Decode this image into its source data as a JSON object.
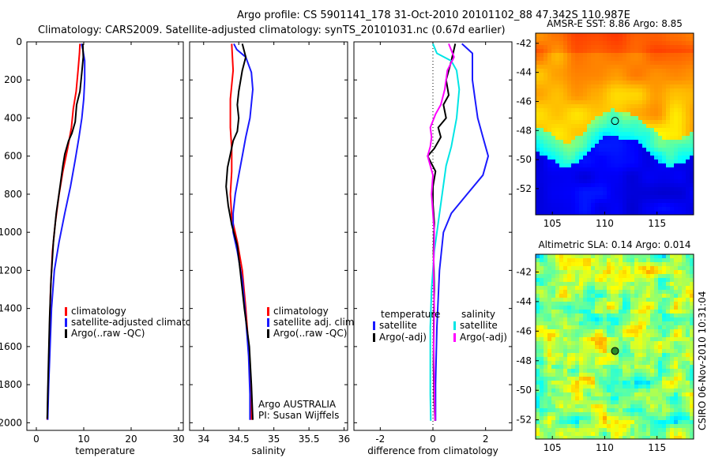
{
  "header": {
    "line1": "Argo profile: CS 5901141_178 31-Oct-2010 20101102_88 47.342S 110.987E",
    "line2": "Climatology: CARS2009. Satellite-adjusted climatology: synTS_20101031.nc (0.67d earlier)"
  },
  "side_label": "CSIRO 06-Nov-2010 10:31:04",
  "colors": {
    "red": "#ff0000",
    "blue": "#1a1aff",
    "black": "#000000",
    "cyan": "#00e5e5",
    "magenta": "#ff00ff"
  },
  "chart_data": [
    {
      "type": "line",
      "xlabel": "temperature",
      "xticks": [
        "0",
        "10",
        "20",
        "30"
      ],
      "xlim": [
        -2,
        31
      ],
      "ylim": [
        2040,
        0
      ],
      "yticks": [
        "0",
        "200",
        "400",
        "600",
        "800",
        "1000",
        "1200",
        "1400",
        "1600",
        "1800",
        "2000"
      ],
      "legend": {
        "position": "lower-left",
        "entries": [
          "climatology",
          "satellite-adjusted climatology",
          "Argo(..raw -QC)"
        ]
      },
      "series": [
        {
          "name": "climatology",
          "color": "red",
          "points": [
            [
              9.2,
              10
            ],
            [
              9.1,
              60
            ],
            [
              8.8,
              150
            ],
            [
              8.4,
              260
            ],
            [
              7.8,
              350
            ],
            [
              7.4,
              450
            ],
            [
              6.6,
              560
            ],
            [
              5.6,
              680
            ],
            [
              4.8,
              800
            ],
            [
              4.0,
              950
            ],
            [
              3.4,
              1100
            ],
            [
              3.0,
              1300
            ],
            [
              2.8,
              1500
            ],
            [
              2.6,
              1700
            ],
            [
              2.4,
              1900
            ],
            [
              2.3,
              1985
            ]
          ]
        },
        {
          "name": "satellite-adjusted climatology",
          "color": "blue",
          "points": [
            [
              9.5,
              10
            ],
            [
              9.8,
              40
            ],
            [
              10.2,
              100
            ],
            [
              10.2,
              200
            ],
            [
              10.0,
              300
            ],
            [
              9.6,
              400
            ],
            [
              9.0,
              500
            ],
            [
              8.2,
              620
            ],
            [
              7.2,
              760
            ],
            [
              6.0,
              900
            ],
            [
              4.8,
              1050
            ],
            [
              3.8,
              1200
            ],
            [
              3.2,
              1400
            ],
            [
              2.9,
              1600
            ],
            [
              2.6,
              1800
            ],
            [
              2.4,
              1985
            ]
          ]
        },
        {
          "name": "Argo(..raw -QC)",
          "color": "black",
          "points": [
            [
              9.8,
              10
            ],
            [
              9.9,
              80
            ],
            [
              9.6,
              160
            ],
            [
              9.2,
              260
            ],
            [
              8.5,
              330
            ],
            [
              8.2,
              420
            ],
            [
              7.5,
              480
            ],
            [
              6.8,
              520
            ],
            [
              6.0,
              590
            ],
            [
              5.6,
              650
            ],
            [
              5.0,
              760
            ],
            [
              4.2,
              900
            ],
            [
              3.6,
              1050
            ],
            [
              3.1,
              1250
            ],
            [
              2.8,
              1450
            ],
            [
              2.6,
              1650
            ],
            [
              2.4,
              1850
            ],
            [
              2.3,
              1980
            ]
          ]
        }
      ]
    },
    {
      "type": "line",
      "xlabel": "salinity",
      "xticks": [
        "34",
        "34.5",
        "35",
        "35.5",
        "36"
      ],
      "xlim": [
        33.8,
        36.05
      ],
      "ylim": [
        2040,
        0
      ],
      "legend": {
        "position": "lower-right",
        "entries": [
          "climatology",
          "satellite adj. clim.",
          "Argo(..raw -QC)"
        ]
      },
      "annotation": [
        "Argo AUSTRALIA",
        "PI: Susan Wijffels"
      ],
      "series": [
        {
          "name": "climatology",
          "color": "red",
          "points": [
            [
              34.4,
              10
            ],
            [
              34.42,
              150
            ],
            [
              34.38,
              300
            ],
            [
              34.38,
              450
            ],
            [
              34.4,
              560
            ],
            [
              34.4,
              680
            ],
            [
              34.38,
              800
            ],
            [
              34.4,
              920
            ],
            [
              34.48,
              1050
            ],
            [
              34.55,
              1200
            ],
            [
              34.6,
              1400
            ],
            [
              34.64,
              1600
            ],
            [
              34.66,
              1800
            ],
            [
              34.68,
              1985
            ]
          ]
        },
        {
          "name": "satellite adj. clim.",
          "color": "blue",
          "points": [
            [
              34.43,
              10
            ],
            [
              34.47,
              40
            ],
            [
              34.6,
              80
            ],
            [
              34.68,
              160
            ],
            [
              34.7,
              250
            ],
            [
              34.66,
              400
            ],
            [
              34.6,
              500
            ],
            [
              34.55,
              600
            ],
            [
              34.5,
              700
            ],
            [
              34.45,
              800
            ],
            [
              34.42,
              900
            ],
            [
              34.42,
              1000
            ],
            [
              34.48,
              1100
            ],
            [
              34.55,
              1250
            ],
            [
              34.6,
              1450
            ],
            [
              34.64,
              1650
            ],
            [
              34.66,
              1850
            ],
            [
              34.66,
              1985
            ]
          ]
        },
        {
          "name": "Argo(..raw -QC)",
          "color": "black",
          "points": [
            [
              34.55,
              10
            ],
            [
              34.6,
              80
            ],
            [
              34.55,
              150
            ],
            [
              34.5,
              260
            ],
            [
              34.48,
              330
            ],
            [
              34.5,
              400
            ],
            [
              34.48,
              470
            ],
            [
              34.42,
              520
            ],
            [
              34.38,
              590
            ],
            [
              34.34,
              660
            ],
            [
              34.32,
              760
            ],
            [
              34.35,
              860
            ],
            [
              34.4,
              960
            ],
            [
              34.48,
              1070
            ],
            [
              34.52,
              1200
            ],
            [
              34.58,
              1400
            ],
            [
              34.65,
              1600
            ],
            [
              34.68,
              1800
            ],
            [
              34.7,
              1985
            ]
          ]
        }
      ]
    },
    {
      "type": "line",
      "xlabel": "difference from climatology",
      "xticks": [
        "-2",
        "0",
        "2"
      ],
      "xlim": [
        -3.0,
        3.0
      ],
      "ylim": [
        2040,
        0
      ],
      "legend": {
        "position": "lower-center",
        "columns": [
          {
            "header": "temperature",
            "entries": [
              "satellite",
              "Argo(-adj)"
            ]
          },
          {
            "header": "salinity",
            "entries": [
              "satellite",
              "Argo(-adj)"
            ]
          }
        ]
      },
      "series": [
        {
          "name": "temperature satellite",
          "color": "blue",
          "points": [
            [
              1.1,
              10
            ],
            [
              1.5,
              60
            ],
            [
              1.5,
              110
            ],
            [
              1.5,
              200
            ],
            [
              1.6,
              300
            ],
            [
              1.7,
              400
            ],
            [
              1.9,
              500
            ],
            [
              2.1,
              600
            ],
            [
              1.9,
              700
            ],
            [
              1.3,
              800
            ],
            [
              0.7,
              900
            ],
            [
              0.4,
              1000
            ],
            [
              0.25,
              1200
            ],
            [
              0.15,
              1500
            ],
            [
              0.1,
              1800
            ],
            [
              0.1,
              1990
            ]
          ]
        },
        {
          "name": "temperature Argo(-adj)",
          "color": "black",
          "points": [
            [
              0.85,
              10
            ],
            [
              0.7,
              100
            ],
            [
              0.5,
              200
            ],
            [
              0.6,
              280
            ],
            [
              0.4,
              330
            ],
            [
              0.5,
              400
            ],
            [
              0.2,
              450
            ],
            [
              0.3,
              500
            ],
            [
              0.05,
              560
            ],
            [
              -0.2,
              600
            ],
            [
              0.1,
              680
            ],
            [
              0.0,
              760
            ],
            [
              0.0,
              850
            ],
            [
              0.05,
              950
            ],
            [
              0.02,
              1100
            ],
            [
              0.05,
              1300
            ],
            [
              0.03,
              1500
            ],
            [
              0.02,
              1700
            ],
            [
              0.05,
              1900
            ],
            [
              0.08,
              1990
            ]
          ]
        },
        {
          "name": "salinity satellite",
          "color": "cyan",
          "points": [
            [
              0.0,
              10
            ],
            [
              0.15,
              60
            ],
            [
              0.7,
              100
            ],
            [
              0.9,
              150
            ],
            [
              1.0,
              250
            ],
            [
              0.9,
              400
            ],
            [
              0.7,
              550
            ],
            [
              0.5,
              650
            ],
            [
              0.35,
              800
            ],
            [
              0.2,
              950
            ],
            [
              0.05,
              1100
            ],
            [
              -0.05,
              1300
            ],
            [
              -0.1,
              1500
            ],
            [
              -0.1,
              1700
            ],
            [
              -0.1,
              1850
            ],
            [
              -0.08,
              1990
            ]
          ]
        },
        {
          "name": "salinity Argo(-adj)",
          "color": "magenta",
          "points": [
            [
              0.6,
              10
            ],
            [
              0.8,
              80
            ],
            [
              0.55,
              150
            ],
            [
              0.45,
              250
            ],
            [
              0.3,
              330
            ],
            [
              0.1,
              380
            ],
            [
              -0.1,
              450
            ],
            [
              -0.05,
              500
            ],
            [
              -0.1,
              550
            ],
            [
              -0.2,
              600
            ],
            [
              -0.1,
              650
            ],
            [
              0.0,
              700
            ],
            [
              -0.05,
              800
            ],
            [
              0.0,
              900
            ],
            [
              0.05,
              1000
            ],
            [
              0.02,
              1200
            ],
            [
              0.05,
              1400
            ],
            [
              0.03,
              1600
            ],
            [
              0.05,
              1800
            ],
            [
              0.08,
              1990
            ]
          ]
        }
      ]
    },
    {
      "type": "heatmap",
      "title": "AMSR-E SST: 8.86 Argo: 8.85",
      "xticks": [
        "105",
        "110",
        "115"
      ],
      "yticks": [
        "-42",
        "-44",
        "-46",
        "-48",
        "-50",
        "-52"
      ],
      "xlim": [
        103.4,
        118.5
      ],
      "ylim": [
        -53.8,
        -41.3
      ],
      "marker": {
        "lon": 110.987,
        "lat": -47.342
      }
    },
    {
      "type": "heatmap",
      "title": "Altimetric SLA: 0.14 Argo: 0.014",
      "xticks": [
        "105",
        "110",
        "115"
      ],
      "yticks": [
        "-42",
        "-44",
        "-46",
        "-48",
        "-50",
        "-52"
      ],
      "xlim": [
        103.4,
        118.5
      ],
      "ylim": [
        -53.3,
        -40.8
      ],
      "marker": {
        "lon": 110.987,
        "lat": -47.342
      }
    }
  ]
}
